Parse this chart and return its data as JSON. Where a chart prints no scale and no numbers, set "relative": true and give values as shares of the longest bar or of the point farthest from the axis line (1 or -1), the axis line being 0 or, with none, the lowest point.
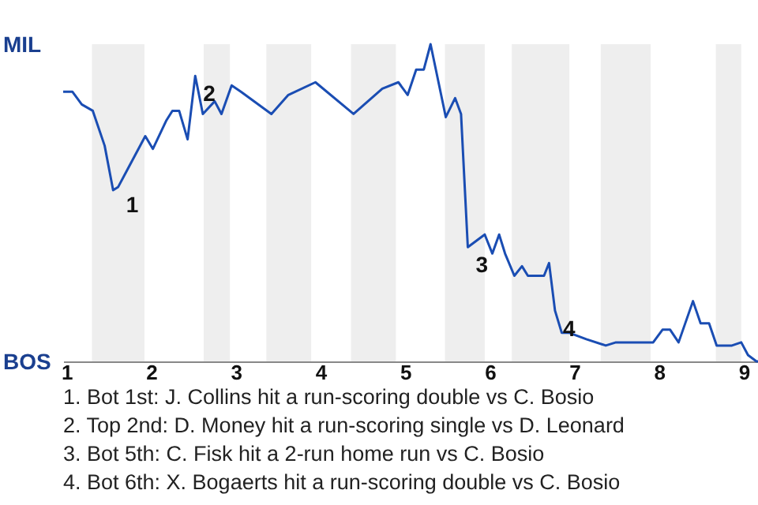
{
  "chart_data": {
    "type": "line",
    "x": [
      0.96,
      1.07,
      1.18,
      1.31,
      1.45,
      1.55,
      1.61,
      1.71,
      1.93,
      2.02,
      2.18,
      2.25,
      2.33,
      2.43,
      2.52,
      2.61,
      2.75,
      2.83,
      2.95,
      3.06,
      3.42,
      3.62,
      3.94,
      4.39,
      4.73,
      4.92,
      5.03,
      5.13,
      5.22,
      5.3,
      5.48,
      5.59,
      5.66,
      5.74,
      5.84,
      5.94,
      6.03,
      6.11,
      6.18,
      6.29,
      6.38,
      6.45,
      6.64,
      6.7,
      6.77,
      6.85,
      6.94,
      7.14,
      7.37,
      7.49,
      7.93,
      8.04,
      8.13,
      8.23,
      8.4,
      8.49,
      8.59,
      8.68,
      8.86,
      8.97,
      9.05,
      9.15,
      9.25
    ],
    "series": [
      {
        "color": "#1a4db3",
        "values": [
          0.85,
          0.85,
          0.81,
          0.79,
          0.68,
          0.54,
          0.55,
          0.6,
          0.71,
          0.67,
          0.76,
          0.79,
          0.79,
          0.7,
          0.9,
          0.78,
          0.82,
          0.78,
          0.87,
          0.85,
          0.78,
          0.84,
          0.88,
          0.78,
          0.86,
          0.88,
          0.84,
          0.92,
          0.92,
          1,
          0.77,
          0.83,
          0.78,
          0.36,
          0.38,
          0.4,
          0.34,
          0.4,
          0.34,
          0.27,
          0.3,
          0.27,
          0.27,
          0.31,
          0.16,
          0.09,
          0.09,
          0.07,
          0.05,
          0.06,
          0.06,
          0.1,
          0.1,
          0.06,
          0.19,
          0.12,
          0.12,
          0.05,
          0.05,
          0.06,
          0.02,
          0,
          0
        ]
      }
    ],
    "xlim": [
      0.96,
      9.28
    ],
    "xticks": [
      1,
      2,
      3,
      4,
      5,
      6,
      7,
      8,
      9
    ],
    "relative": true,
    "bands": [
      {
        "axis": "x",
        "from": 1.3,
        "to": 1.92,
        "label": null,
        "color": "#eeeeee"
      },
      {
        "axis": "x",
        "from": 2.62,
        "to": 2.93,
        "label": null,
        "color": "#eeeeee"
      },
      {
        "axis": "x",
        "from": 3.36,
        "to": 3.89,
        "label": null,
        "color": "#eeeeee"
      },
      {
        "axis": "x",
        "from": 4.36,
        "to": 4.89,
        "label": null,
        "color": "#eeeeee"
      },
      {
        "axis": "x",
        "from": 5.47,
        "to": 5.94,
        "label": null,
        "color": "#eeeeee"
      },
      {
        "axis": "x",
        "from": 6.26,
        "to": 6.94,
        "label": null,
        "color": "#eeeeee"
      },
      {
        "axis": "x",
        "from": 7.31,
        "to": 7.9,
        "label": null,
        "color": "#eeeeee"
      },
      {
        "axis": "x",
        "from": 8.67,
        "to": 8.97,
        "label": null,
        "color": "#eeeeee"
      }
    ],
    "annotations": [
      "MIL",
      "BOS",
      {
        "text": "1",
        "x": 1.61,
        "y": 0.55
      },
      {
        "text": "2",
        "x": 2.52,
        "y": 0.9
      },
      {
        "text": "3",
        "x": 5.74,
        "y": 0.36
      },
      {
        "text": "4",
        "x": 6.77,
        "y": 0.16
      },
      "1. Bot 1st: J. Collins hit a run-scoring double vs C. Bosio",
      "2. Top 2nd: D. Money hit a run-scoring single vs D. Leonard",
      "3. Bot 5th: C. Fisk hit a 2-run home run vs C. Bosio",
      "4. Bot 6th: X. Bogaerts hit a run-scoring double vs C. Bosio"
    ]
  }
}
